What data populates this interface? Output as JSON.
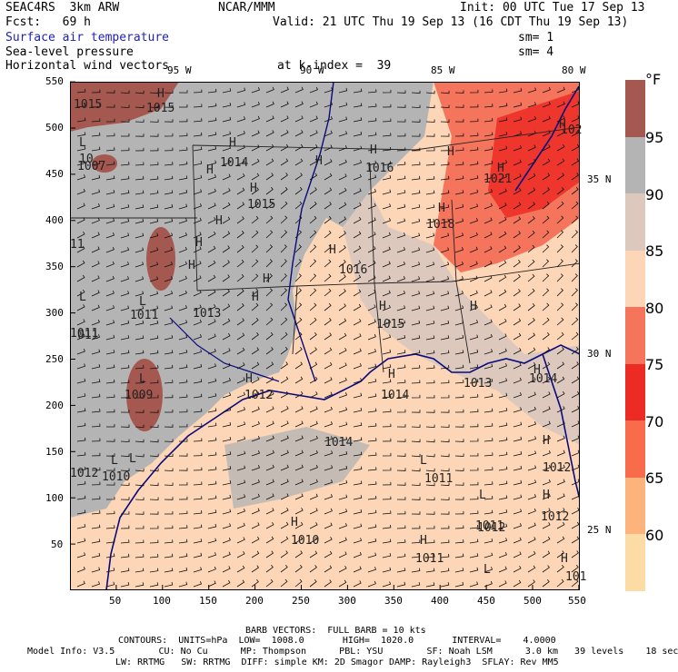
{
  "header": {
    "model": "SEAC4RS  3km ARW",
    "center": "NCAR/MMM",
    "init": "Init: 00 UTC Tue 17 Sep 13",
    "fcst": "Fcst:   69 h",
    "valid": "Valid: 21 UTC Thu 19 Sep 13 (16 CDT Thu 19 Sep 13)",
    "field1": "Surface air temperature",
    "field1_sm": "sm= 1",
    "field2": "Sea-level pressure",
    "field2_sm": "sm= 4",
    "field3": "Horizontal wind vectors",
    "level": "at k-index =  39"
  },
  "map": {
    "top_longitudes": [
      "95 W",
      "90 W",
      "85 W",
      "80 W"
    ],
    "right_latitudes": [
      "35 N",
      "30 N",
      "25 N"
    ],
    "y_ticks": [
      "550",
      "500",
      "450",
      "400",
      "350",
      "300",
      "250",
      "200",
      "150",
      "100",
      "50"
    ],
    "x_ticks": [
      "50",
      "100",
      "150",
      "200",
      "250",
      "300",
      "350",
      "400",
      "450",
      "500",
      "550"
    ],
    "pressure_labels": [
      {
        "t": "1015"
      },
      {
        "t": "1015"
      },
      {
        "t": "1014"
      },
      {
        "t": "1016"
      },
      {
        "t": "1015"
      },
      {
        "t": "1018"
      },
      {
        "t": "1016"
      },
      {
        "t": "1015"
      },
      {
        "t": "1013"
      },
      {
        "t": "1011"
      },
      {
        "t": "1011"
      },
      {
        "t": "1012"
      },
      {
        "t": "1021"
      },
      {
        "t": "102"
      },
      {
        "t": "1009"
      },
      {
        "t": "1012"
      },
      {
        "t": "1014"
      },
      {
        "t": "1013"
      },
      {
        "t": "1014"
      },
      {
        "t": "1014"
      },
      {
        "t": "1010"
      },
      {
        "t": "1011"
      },
      {
        "t": "1012"
      },
      {
        "t": "1012"
      },
      {
        "t": "1010"
      },
      {
        "t": "1011"
      },
      {
        "t": "101"
      },
      {
        "t": "011"
      },
      {
        "t": "11"
      },
      {
        "t": "1007"
      },
      {
        "t": "1011"
      },
      {
        "t": "10"
      },
      {
        "t": "1012"
      }
    ],
    "high_markers": [
      "H",
      "H",
      "H",
      "H",
      "H",
      "H",
      "H",
      "H",
      "H",
      "H",
      "H",
      "H",
      "H",
      "H",
      "H",
      "H",
      "H",
      "H",
      "H",
      "H",
      "H",
      "H",
      "H",
      "H",
      "H",
      "H"
    ],
    "low_markers": [
      "L",
      "L",
      "L",
      "L",
      "L",
      "L",
      "L",
      "L",
      "L"
    ]
  },
  "colorbar": {
    "unit": "°F",
    "levels": [
      "95",
      "90",
      "85",
      "80",
      "75",
      "70",
      "65",
      "60"
    ],
    "colors": [
      "#a4584f",
      "#b4b4b4",
      "#dcc8bc",
      "#fcd6b6",
      "#f4745c",
      "#ec2c24",
      "#f86c4c",
      "#fcb47c",
      "#fcdca4"
    ]
  },
  "footer": {
    "barb": "BARB VECTORS:  FULL BARB = 10 kts",
    "contours": "CONTOURS:  UNITS=hPa  LOW=  1008.0       HIGH=  1020.0       INTERVAL=    4.0000",
    "model_info": "Model Info: V3.5        CU: No Cu      MP: Thompson      PBL: YSU        SF: Noah LSM      3.0 km   39 levels    18 sec",
    "physics": "LW: RRTMG   SW: RRTMG  DIFF: simple KM: 2D Smagor DAMP: Rayleigh3  SFLAY: Rev MM5"
  }
}
